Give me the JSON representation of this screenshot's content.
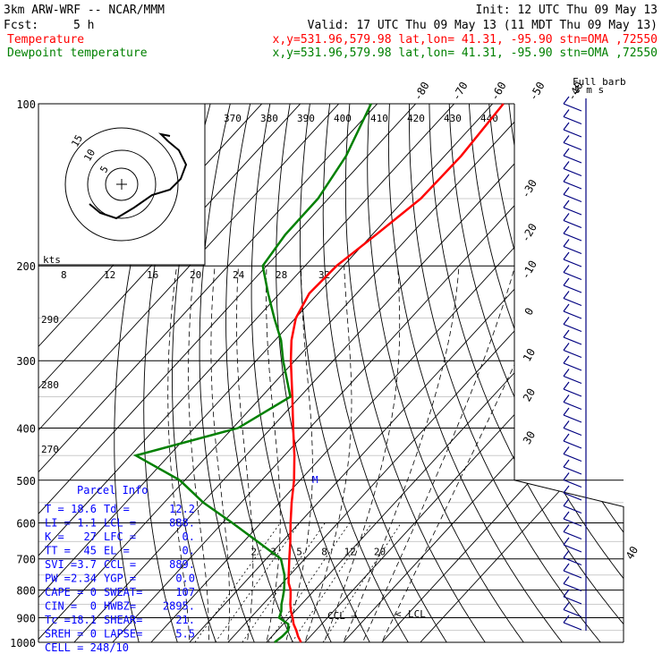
{
  "header": {
    "model": "3km ARW-WRF -- NCAR/MMM",
    "init": "Init: 12 UTC Thu 09 May 13",
    "fcst_label": "Fcst:",
    "fcst_value": "5 h",
    "valid": "Valid: 17 UTC Thu 09 May 13 (11 MDT Thu 09 May 13)",
    "temp_label": "Temperature",
    "dew_label": "Dewpoint temperature",
    "temp_loc": "x,y=531.96,579.98   lat,lon= 41.31, -95.90   stn=OMA ,72550",
    "dew_loc": "x,y=531.96,579.98   lat,lon= 41.31, -95.90   stn=OMA ,72550"
  },
  "colors": {
    "temperature": "#ff0000",
    "dewpoint": "#008000",
    "parcel_box": "#0000ff",
    "wind_barbs": "#000080",
    "grid": "#000000",
    "isotherm": "#000000",
    "dry_adiabat": "#000000",
    "moist_adiabat": "#000000",
    "mixing_ratio": "#000000"
  },
  "chart_data": {
    "type": "line",
    "title": "",
    "ylabel": "",
    "xlabel": "",
    "y_scale": "log-pressure",
    "pressure_levels": [
      100,
      200,
      300,
      400,
      500,
      600,
      700,
      800,
      900,
      1000
    ],
    "isotherm_labels": [
      "-80",
      "-70",
      "-60",
      "-50",
      "-40",
      "-30",
      "-20",
      "-10",
      "0",
      "10",
      "20",
      "30",
      "40"
    ],
    "theta_labels": [
      "370",
      "380",
      "390",
      "400",
      "410",
      "420",
      "430",
      "440"
    ],
    "theta_left_labels": [
      "290",
      "280",
      "270"
    ],
    "mixing_ratio_labels": [
      "2",
      "3",
      "5",
      "8",
      "12",
      "20"
    ],
    "hodograph_speed_labels": [
      "8",
      "12",
      "16",
      "20",
      "24",
      "28",
      "32"
    ],
    "hodograph_units": "kts",
    "hodograph_ring_labels": [
      "5",
      "10",
      "15"
    ],
    "full_barb_label": "Full barb",
    "full_barb_value": "5 m s",
    "level_markers": [
      "CCL",
      "LCL",
      "M"
    ],
    "series": [
      {
        "name": "Temperature",
        "pressure": [
          1000,
          975,
          950,
          925,
          900,
          875,
          850,
          825,
          800,
          775,
          750,
          700,
          650,
          600,
          550,
          500,
          450,
          400,
          350,
          300,
          275,
          250,
          225,
          200,
          175,
          150,
          125,
          100
        ],
        "values": [
          19.0,
          16.8,
          14.9,
          12.7,
          10.9,
          8.9,
          7.1,
          5.5,
          3.8,
          1.5,
          -0.3,
          -4.0,
          -7.9,
          -12.3,
          -16.9,
          -21.6,
          -27.4,
          -34.3,
          -42.0,
          -51.0,
          -55.7,
          -59.9,
          -62.3,
          -61.8,
          -59.0,
          -56.0,
          -55.7,
          -57.2
        ]
      },
      {
        "name": "Dewpoint temperature",
        "pressure": [
          1000,
          975,
          950,
          925,
          900,
          875,
          850,
          825,
          800,
          775,
          750,
          700,
          650,
          600,
          550,
          500,
          450,
          400,
          350,
          300,
          275,
          250,
          225,
          200,
          175,
          150,
          125,
          100
        ],
        "values": [
          12.1,
          12.7,
          12.8,
          11.3,
          7.4,
          6.4,
          4.8,
          3.5,
          2.1,
          0.4,
          -1.4,
          -6.2,
          -16.4,
          -27.5,
          -39.9,
          -51.3,
          -68.6,
          -48.6,
          -42.5,
          -53.0,
          -58.4,
          -65.5,
          -73.0,
          -81.0,
          -82.6,
          -82.7,
          -85.6,
          -91.6
        ]
      }
    ]
  },
  "parcel_info": {
    "title": "Parcel Info",
    "rows": [
      [
        "T   =",
        "18.6",
        "Td =",
        "12.2"
      ],
      [
        "LI  =",
        "1.1",
        "LCL =",
        "888."
      ],
      [
        "K   =",
        "27",
        "LFC =",
        "0."
      ],
      [
        "TT  =",
        "45",
        "EL  =",
        "0."
      ],
      [
        "SVI =",
        "3.7",
        "CCL =",
        "889."
      ],
      [
        "PW  =",
        "2.34",
        "YGP =",
        "0.0"
      ],
      [
        "CAPE =",
        "0",
        "SWEAT=",
        "107"
      ],
      [
        "CIN  =",
        "0",
        "HWBZ=",
        "2895."
      ],
      [
        "Tc   =",
        "18.1",
        "SHEAR=",
        "21."
      ],
      [
        "SREH =",
        "0",
        "LAPSE=",
        "5.5"
      ]
    ],
    "cell": "CELL = 248/10"
  }
}
